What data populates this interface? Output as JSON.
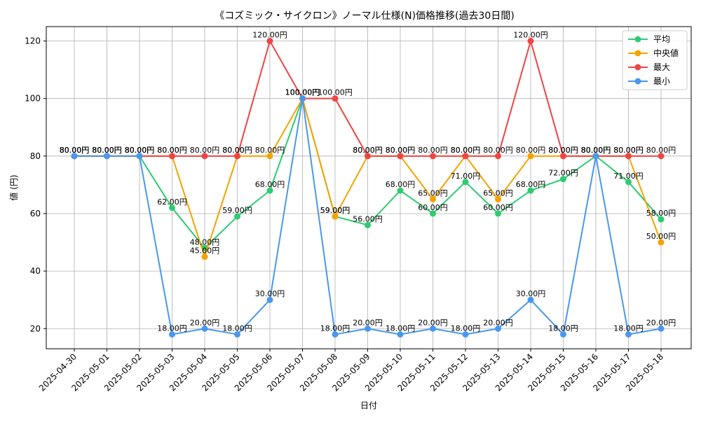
{
  "chart_data": {
    "type": "line",
    "title": "《コズミック・サイクロン》ノーマル仕様(N)価格推移(過去30日間)",
    "xlabel": "日付",
    "ylabel": "値 (円)",
    "ylim": [
      13,
      125
    ],
    "yticks": [
      20,
      40,
      60,
      80,
      100,
      120
    ],
    "grid": true,
    "legend_position": "top-right",
    "value_suffix": "円",
    "categories": [
      "2025-04-30",
      "2025-05-01",
      "2025-05-02",
      "2025-05-03",
      "2025-05-04",
      "2025-05-05",
      "2025-05-06",
      "2025-05-07",
      "2025-05-08",
      "2025-05-09",
      "2025-05-10",
      "2025-05-11",
      "2025-05-12",
      "2025-05-13",
      "2025-05-14",
      "2025-05-15",
      "2025-05-16",
      "2025-05-17",
      "2025-05-18"
    ],
    "series": [
      {
        "name": "平均",
        "color": "#2ecc71",
        "values": [
          80,
          80,
          80,
          62,
          48,
          59,
          68,
          100,
          59,
          56,
          68,
          60,
          71,
          60,
          68,
          72,
          80,
          71,
          58
        ]
      },
      {
        "name": "中央値",
        "color": "#f5a300",
        "values": [
          80,
          80,
          80,
          80,
          45,
          80,
          80,
          100,
          59,
          80,
          80,
          65,
          80,
          65,
          80,
          80,
          80,
          80,
          50
        ]
      },
      {
        "name": "最大",
        "color": "#ef4444",
        "values": [
          80,
          80,
          80,
          80,
          80,
          80,
          120,
          100,
          100,
          80,
          80,
          80,
          80,
          80,
          120,
          80,
          80,
          80,
          80
        ]
      },
      {
        "name": "最小",
        "color": "#4a97f0",
        "values": [
          80,
          80,
          80,
          18,
          20,
          18,
          30,
          100,
          18,
          20,
          18,
          20,
          18,
          20,
          30,
          18,
          80,
          18,
          20
        ]
      }
    ]
  }
}
